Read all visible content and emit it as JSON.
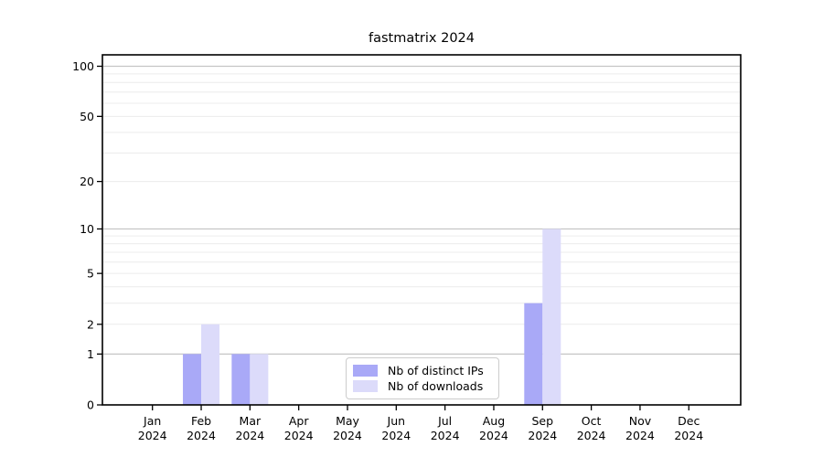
{
  "chart_data": {
    "type": "bar",
    "title": "fastmatrix 2024",
    "categories": [
      "Jan",
      "Feb",
      "Mar",
      "Apr",
      "May",
      "Jun",
      "Jul",
      "Aug",
      "Sep",
      "Oct",
      "Nov",
      "Dec"
    ],
    "year_label": "2024",
    "xlabel": "",
    "ylabel": "",
    "yscale": "log1p",
    "yticks": [
      0,
      1,
      2,
      5,
      10,
      20,
      50,
      100
    ],
    "ylim": [
      0,
      117
    ],
    "grid": "horizontal minor log gridlines, decades emphasized",
    "legend_position": "inside bottom-center",
    "series": [
      {
        "name": "Nb of distinct IPs",
        "color": "#a9a9f7",
        "values": [
          0,
          1,
          1,
          0,
          0,
          0,
          0,
          0,
          3,
          0,
          0,
          0
        ]
      },
      {
        "name": "Nb of downloads",
        "color": "#dcdbfa",
        "values": [
          0,
          2,
          1,
          0,
          0,
          0,
          0,
          0,
          10,
          0,
          0,
          0
        ]
      }
    ],
    "colors": {
      "spine": "#000000",
      "grid_major": "#c6c6c6",
      "grid_minor": "#ececec",
      "tick_text": "#000000"
    }
  }
}
